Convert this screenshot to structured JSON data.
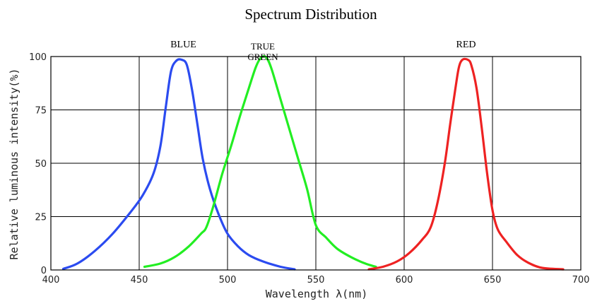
{
  "chart_data": {
    "type": "line",
    "title": "Spectrum Distribution",
    "xlabel": "Wavelength  λ(nm)",
    "ylabel": "Relative luminous intensity(%)",
    "xlim": [
      400,
      700
    ],
    "ylim": [
      0,
      100
    ],
    "xticks": [
      400,
      450,
      500,
      550,
      600,
      650,
      700
    ],
    "yticks": [
      0,
      25,
      50,
      75,
      100
    ],
    "grid": true,
    "series": [
      {
        "name": "BLUE",
        "color": "#2b4bf0",
        "label_at": [
          475,
          100
        ],
        "points": [
          [
            407,
            0.5
          ],
          [
            415,
            3
          ],
          [
            425,
            9
          ],
          [
            435,
            17
          ],
          [
            445,
            27
          ],
          [
            452,
            35
          ],
          [
            458,
            45
          ],
          [
            462,
            58
          ],
          [
            465,
            76
          ],
          [
            468,
            93
          ],
          [
            471,
            98
          ],
          [
            474,
            98.5
          ],
          [
            477,
            96
          ],
          [
            480,
            84
          ],
          [
            483,
            68
          ],
          [
            486,
            52
          ],
          [
            490,
            38
          ],
          [
            495,
            26
          ],
          [
            500,
            17
          ],
          [
            506,
            11
          ],
          [
            512,
            7
          ],
          [
            520,
            4
          ],
          [
            530,
            1.5
          ],
          [
            538,
            0.3
          ]
        ]
      },
      {
        "name": "TRUE GREEN",
        "color": "#22ee22",
        "label_at": [
          520,
          100
        ],
        "points": [
          [
            453,
            1.5
          ],
          [
            462,
            3
          ],
          [
            470,
            6
          ],
          [
            478,
            11
          ],
          [
            485,
            17
          ],
          [
            488,
            20
          ],
          [
            492,
            30
          ],
          [
            497,
            45
          ],
          [
            502,
            58
          ],
          [
            507,
            72
          ],
          [
            512,
            85
          ],
          [
            516,
            95
          ],
          [
            519,
            99.5
          ],
          [
            522,
            99.5
          ],
          [
            525,
            94
          ],
          [
            530,
            80
          ],
          [
            535,
            66
          ],
          [
            540,
            52
          ],
          [
            545,
            38
          ],
          [
            550,
            21
          ],
          [
            556,
            15
          ],
          [
            562,
            10
          ],
          [
            570,
            6
          ],
          [
            578,
            3
          ],
          [
            584,
            1.5
          ]
        ]
      },
      {
        "name": "RED",
        "color": "#ee2222",
        "label_at": [
          635,
          100
        ],
        "points": [
          [
            580,
            0.3
          ],
          [
            588,
            1.5
          ],
          [
            596,
            4
          ],
          [
            603,
            8
          ],
          [
            610,
            14
          ],
          [
            615,
            20
          ],
          [
            619,
            32
          ],
          [
            623,
            50
          ],
          [
            626,
            68
          ],
          [
            629,
            85
          ],
          [
            631,
            95
          ],
          [
            633,
            98.5
          ],
          [
            636,
            98.5
          ],
          [
            638,
            96
          ],
          [
            641,
            85
          ],
          [
            644,
            66
          ],
          [
            647,
            45
          ],
          [
            650,
            28
          ],
          [
            653,
            19
          ],
          [
            658,
            13
          ],
          [
            664,
            7
          ],
          [
            670,
            3.5
          ],
          [
            678,
            1
          ],
          [
            690,
            0.3
          ]
        ]
      }
    ]
  }
}
